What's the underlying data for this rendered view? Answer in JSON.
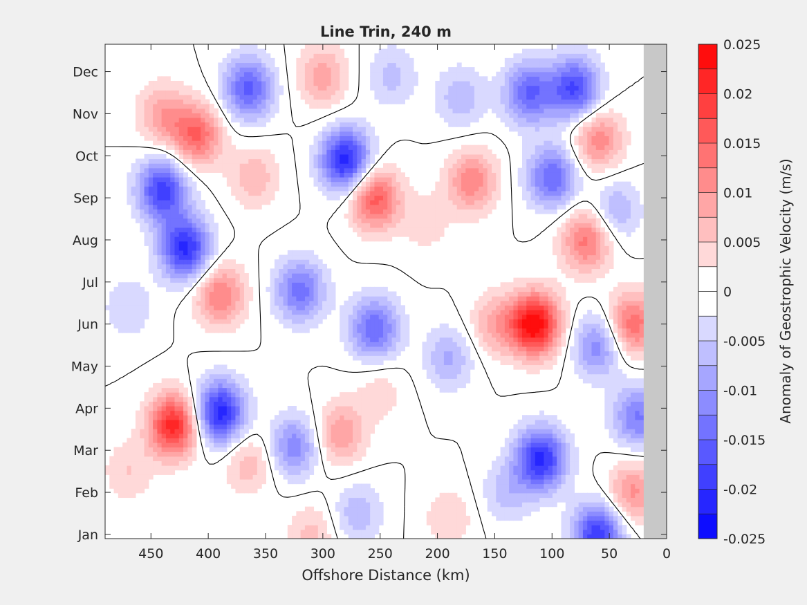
{
  "chart_data": {
    "type": "heatmap",
    "subtype": "filled-contour",
    "title": "Line Trin, 240 m",
    "xlabel": "Offshore Distance (km)",
    "ylabel": "",
    "x_direction": "reversed",
    "xlim": [
      490,
      0
    ],
    "xticks": [
      450,
      400,
      350,
      300,
      250,
      200,
      150,
      100,
      50,
      0
    ],
    "y_categories": [
      "Jan",
      "Feb",
      "Mar",
      "Apr",
      "May",
      "Jun",
      "Jul",
      "Aug",
      "Sep",
      "Oct",
      "Nov",
      "Dec"
    ],
    "colorbar": {
      "label": "Anomaly of Geostrophic Velocity (m/s)",
      "range": [
        -0.025,
        0.025
      ],
      "ticks": [
        "-0.025",
        "-0.02",
        "-0.015",
        "-0.01",
        "-0.005",
        "0",
        "0.005",
        "0.01",
        "0.015",
        "0.02",
        "0.025"
      ],
      "levels": [
        -0.025,
        -0.0225,
        -0.02,
        -0.0175,
        -0.015,
        -0.0125,
        -0.01,
        -0.0075,
        -0.005,
        -0.0025,
        0,
        0.0025,
        0.005,
        0.0075,
        0.01,
        0.0125,
        0.015,
        0.0175,
        0.02,
        0.0225,
        0.025
      ]
    },
    "zero_contour": true,
    "no_data_region_km": [
      0,
      20
    ],
    "no_data_color": "#c8c8c8",
    "colors": {
      "positive": "#ff0000",
      "negative": "#0000ff",
      "zero": "#ffffff"
    },
    "anomaly_features": [
      {
        "x_km": 430,
        "month": 3.6,
        "value": 0.022
      },
      {
        "x_km": 420,
        "month": 7.8,
        "value": -0.021
      },
      {
        "x_km": 440,
        "month": 9.2,
        "value": -0.019
      },
      {
        "x_km": 390,
        "month": 3.9,
        "value": -0.022
      },
      {
        "x_km": 410,
        "month": 10.5,
        "value": 0.015
      },
      {
        "x_km": 440,
        "month": 11.0,
        "value": 0.009
      },
      {
        "x_km": 390,
        "month": 6.7,
        "value": 0.013
      },
      {
        "x_km": 365,
        "month": 11.6,
        "value": -0.016
      },
      {
        "x_km": 360,
        "month": 9.5,
        "value": 0.007
      },
      {
        "x_km": 320,
        "month": 6.8,
        "value": -0.014
      },
      {
        "x_km": 325,
        "month": 3.1,
        "value": -0.012
      },
      {
        "x_km": 365,
        "month": 2.7,
        "value": 0.007
      },
      {
        "x_km": 280,
        "month": 9.9,
        "value": -0.022
      },
      {
        "x_km": 285,
        "month": 3.4,
        "value": 0.01
      },
      {
        "x_km": 255,
        "month": 9.0,
        "value": 0.017
      },
      {
        "x_km": 255,
        "month": 5.9,
        "value": -0.015
      },
      {
        "x_km": 300,
        "month": 11.9,
        "value": 0.009
      },
      {
        "x_km": 240,
        "month": 11.9,
        "value": -0.006
      },
      {
        "x_km": 190,
        "month": 5.2,
        "value": -0.008
      },
      {
        "x_km": 270,
        "month": 1.5,
        "value": -0.007
      },
      {
        "x_km": 310,
        "month": 1.0,
        "value": 0.006
      },
      {
        "x_km": 190,
        "month": 1.4,
        "value": 0.005
      },
      {
        "x_km": 170,
        "month": 9.4,
        "value": 0.012
      },
      {
        "x_km": 120,
        "month": 11.5,
        "value": -0.015
      },
      {
        "x_km": 180,
        "month": 11.4,
        "value": -0.007
      },
      {
        "x_km": 80,
        "month": 11.6,
        "value": -0.018
      },
      {
        "x_km": 115,
        "month": 6.0,
        "value": 0.025
      },
      {
        "x_km": 100,
        "month": 9.5,
        "value": -0.015
      },
      {
        "x_km": 70,
        "month": 8.0,
        "value": 0.014
      },
      {
        "x_km": 60,
        "month": 10.4,
        "value": 0.012
      },
      {
        "x_km": 110,
        "month": 2.8,
        "value": -0.021
      },
      {
        "x_km": 60,
        "month": 1.0,
        "value": -0.02
      },
      {
        "x_km": 60,
        "month": 5.5,
        "value": -0.012
      },
      {
        "x_km": 30,
        "month": 6.0,
        "value": 0.015
      },
      {
        "x_km": 25,
        "month": 3.8,
        "value": -0.013
      },
      {
        "x_km": 30,
        "month": 2.0,
        "value": 0.011
      },
      {
        "x_km": 45,
        "month": 8.7,
        "value": -0.008
      },
      {
        "x_km": 150,
        "month": 6.0,
        "value": 0.008
      },
      {
        "x_km": 140,
        "month": 2.0,
        "value": -0.006
      },
      {
        "x_km": 250,
        "month": 4.4,
        "value": 0.004
      },
      {
        "x_km": 470,
        "month": 6.4,
        "value": -0.005
      },
      {
        "x_km": 470,
        "month": 2.5,
        "value": 0.005
      },
      {
        "x_km": 210,
        "month": 8.4,
        "value": 0.004
      }
    ]
  }
}
